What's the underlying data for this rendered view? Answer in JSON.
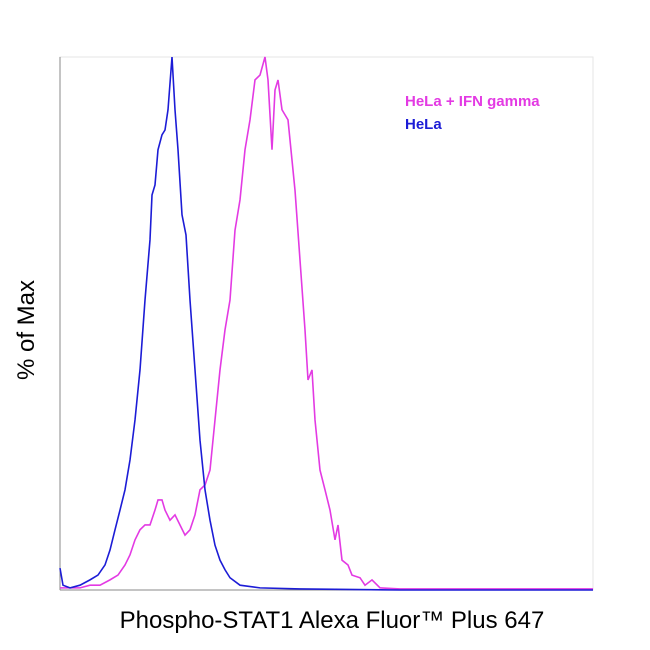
{
  "chart_data": {
    "type": "line",
    "x_label": "Phospho-STAT1 Alexa Fluor™ Plus 647",
    "y_label": "% of Max",
    "xlim": [
      0,
      533
    ],
    "ylim": [
      0,
      100
    ],
    "series": [
      {
        "name": "HeLa + IFN gamma",
        "color": "#e33ae3",
        "x": [
          0,
          20,
          30,
          40,
          50,
          58,
          65,
          70,
          75,
          80,
          85,
          90,
          95,
          98,
          102,
          105,
          110,
          115,
          120,
          125,
          130,
          135,
          140,
          145,
          150,
          155,
          160,
          165,
          170,
          175,
          180,
          185,
          190,
          195,
          200,
          205,
          208,
          212,
          215,
          218,
          222,
          228,
          235,
          240,
          245,
          248,
          252,
          255,
          260,
          265,
          270,
          275,
          278,
          282,
          288,
          292,
          300,
          305,
          312,
          320,
          340,
          533
        ],
        "values": [
          0.4,
          0.4,
          0.9,
          0.9,
          1.9,
          2.8,
          4.7,
          6.6,
          9.4,
          11.3,
          12.2,
          12.2,
          15,
          16.9,
          16.9,
          15,
          13.1,
          14.1,
          12.2,
          10.3,
          11.3,
          14.1,
          18.8,
          19.7,
          22.5,
          31.9,
          41.3,
          48.8,
          54.4,
          67.5,
          73.2,
          82.6,
          88.2,
          95.7,
          96.6,
          100,
          95.7,
          82.6,
          93.8,
          95.7,
          90.1,
          88.2,
          75,
          61.9,
          48.8,
          39.4,
          41.3,
          31.9,
          22.5,
          18.8,
          15,
          9.4,
          12.2,
          5.6,
          4.7,
          2.8,
          2.3,
          0.9,
          1.9,
          0.4,
          0.2,
          0.2
        ]
      },
      {
        "name": "HeLa",
        "color": "#1c1cd6",
        "x": [
          0,
          3,
          10,
          20,
          30,
          38,
          45,
          50,
          55,
          60,
          65,
          70,
          75,
          80,
          85,
          90,
          92,
          95,
          98,
          102,
          105,
          108,
          112,
          115,
          118,
          122,
          126,
          130,
          135,
          140,
          145,
          150,
          155,
          160,
          165,
          170,
          180,
          200,
          240,
          340,
          533
        ],
        "values": [
          4.1,
          0.9,
          0.4,
          0.9,
          1.9,
          2.8,
          4.7,
          7.5,
          11.3,
          15,
          18.8,
          24.4,
          31.9,
          41.3,
          54.4,
          65.7,
          74.1,
          76,
          82.6,
          85.4,
          86.3,
          90.1,
          100,
          90.1,
          82.6,
          70.4,
          66.6,
          54.4,
          41.3,
          28.1,
          18.8,
          13.1,
          8.4,
          5.6,
          3.8,
          2.3,
          0.9,
          0.4,
          0.2,
          0,
          0
        ]
      }
    ]
  }
}
